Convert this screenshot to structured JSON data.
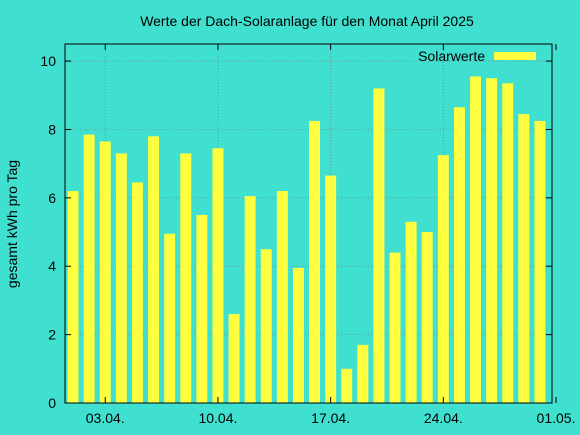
{
  "chart_data": {
    "type": "bar",
    "title": "Werte der Dach-Solaranlage für den Monat April 2025",
    "xlabel": "",
    "ylabel": "gesamt kWh pro Tag",
    "ylim": [
      0,
      10.5
    ],
    "yticks": [
      0,
      2,
      4,
      6,
      8,
      10
    ],
    "grid": true,
    "legend_position": "top-right",
    "x_start": "2025-04-01",
    "x_end": "2025-05-01",
    "x_ticks": [
      {
        "date": "2025-04-03",
        "label": "03.04."
      },
      {
        "date": "2025-04-10",
        "label": "10.04."
      },
      {
        "date": "2025-04-17",
        "label": "17.04."
      },
      {
        "date": "2025-04-24",
        "label": "24.04."
      },
      {
        "date": "2025-05-01",
        "label": "01.05."
      }
    ],
    "categories": [
      "2025-04-01",
      "2025-04-02",
      "2025-04-03",
      "2025-04-04",
      "2025-04-05",
      "2025-04-06",
      "2025-04-07",
      "2025-04-08",
      "2025-04-09",
      "2025-04-10",
      "2025-04-11",
      "2025-04-12",
      "2025-04-13",
      "2025-04-14",
      "2025-04-15",
      "2025-04-16",
      "2025-04-17",
      "2025-04-18",
      "2025-04-19",
      "2025-04-20",
      "2025-04-21",
      "2025-04-22",
      "2025-04-23",
      "2025-04-24",
      "2025-04-25",
      "2025-04-26",
      "2025-04-27",
      "2025-04-28",
      "2025-04-29",
      "2025-04-30",
      "2025-05-01"
    ],
    "series": [
      {
        "name": "Solarwerte",
        "color": "#ffff40",
        "values": [
          6.2,
          7.85,
          7.65,
          7.3,
          6.45,
          7.8,
          4.95,
          7.3,
          5.5,
          7.45,
          2.6,
          6.05,
          4.5,
          6.2,
          3.95,
          8.25,
          6.65,
          1.0,
          1.7,
          9.2,
          4.4,
          5.3,
          5.0,
          7.25,
          8.65,
          9.55,
          9.5,
          9.35,
          8.45,
          8.25,
          0
        ]
      }
    ],
    "colors": {
      "background": "#40e0d0",
      "grid": "#808080",
      "axis": "#000000"
    }
  }
}
